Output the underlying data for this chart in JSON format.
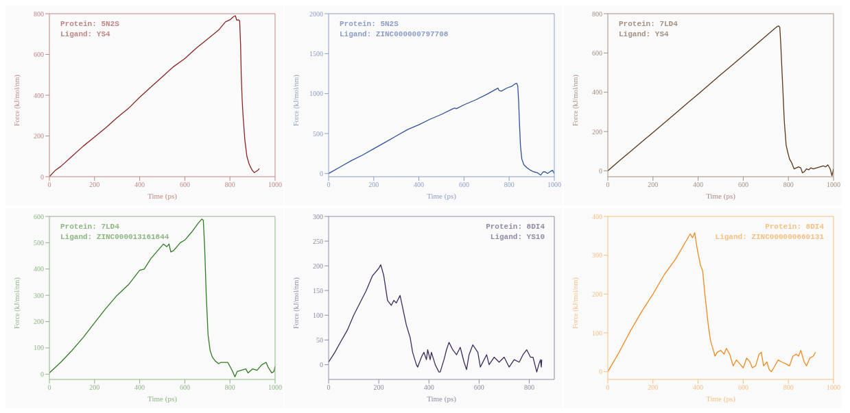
{
  "chart_data": [
    {
      "type": "line",
      "xlabel": "Time (ps)",
      "ylabel": "Force (kJ/mol/nm)",
      "annotations": [
        "Protein: 5N2S",
        "Ligand: YS4"
      ],
      "xlim": [
        0,
        1000
      ],
      "xticks": [
        0,
        200,
        400,
        600,
        800,
        1000
      ],
      "ylim": [
        0,
        800
      ],
      "yticks": [
        0,
        200,
        400,
        600,
        800
      ],
      "grid": false,
      "marker": "none",
      "series": [
        {
          "color": "#8b2323",
          "x": [
            0,
            25,
            50,
            100,
            150,
            200,
            250,
            300,
            350,
            400,
            450,
            500,
            550,
            600,
            650,
            700,
            750,
            780,
            800,
            815,
            824,
            830,
            838,
            843,
            847,
            850,
            854,
            858,
            866,
            875,
            884,
            892,
            900,
            908,
            915,
            922,
            930
          ],
          "values": [
            0,
            30,
            50,
            100,
            150,
            195,
            240,
            290,
            335,
            390,
            440,
            490,
            540,
            580,
            630,
            675,
            720,
            760,
            770,
            785,
            790,
            768,
            770,
            765,
            650,
            500,
            380,
            300,
            180,
            100,
            65,
            45,
            30,
            20,
            25,
            30,
            40
          ]
        }
      ]
    },
    {
      "type": "line",
      "xlabel": "Time (ps)",
      "ylabel": "Force (kJ/mol/nm)",
      "annotations": [
        "Protein: 5N2S",
        "Ligand: ZINC000000797708"
      ],
      "xlim": [
        0,
        1000
      ],
      "xticks": [
        0,
        200,
        400,
        600,
        800,
        1000
      ],
      "ylim": [
        -40,
        2000
      ],
      "yticks": [
        0,
        500,
        1000,
        1500,
        2000
      ],
      "grid": false,
      "marker": "none",
      "series": [
        {
          "color": "#2d4f9a",
          "x": [
            0,
            50,
            100,
            150,
            200,
            250,
            300,
            350,
            400,
            450,
            500,
            550,
            560,
            565,
            600,
            650,
            700,
            745,
            750,
            755,
            765,
            790,
            810,
            825,
            833,
            838,
            842,
            846,
            850,
            856,
            865,
            880,
            895,
            910,
            925,
            940,
            950,
            960,
            970,
            985,
            992,
            1000
          ],
          "values": [
            0,
            80,
            160,
            230,
            310,
            390,
            470,
            550,
            610,
            680,
            740,
            810,
            820,
            810,
            860,
            920,
            990,
            1060,
            1070,
            1040,
            1030,
            1070,
            1090,
            1120,
            1130,
            1100,
            900,
            600,
            350,
            180,
            110,
            70,
            40,
            20,
            10,
            -20,
            20,
            20,
            0,
            30,
            40,
            0
          ]
        }
      ]
    },
    {
      "type": "line",
      "xlabel": "Time (ps)",
      "ylabel": "Force (kJ/mol/nm)",
      "annotations": [
        "Protein: 7LD4",
        "Ligand: YS4"
      ],
      "xlim": [
        0,
        1000
      ],
      "xticks": [
        0,
        200,
        400,
        600,
        800,
        1000
      ],
      "ylim": [
        -30,
        800
      ],
      "yticks": [
        0,
        200,
        400,
        600,
        800
      ],
      "grid": false,
      "marker": "none",
      "series": [
        {
          "color": "#5a3518",
          "x": [
            0,
            50,
            100,
            150,
            200,
            250,
            300,
            350,
            400,
            450,
            500,
            550,
            600,
            650,
            700,
            740,
            750,
            757,
            762,
            766,
            770,
            776,
            782,
            790,
            796,
            805,
            815,
            825,
            835,
            845,
            855,
            862,
            870,
            880,
            890,
            900,
            910,
            925,
            940,
            955,
            965,
            975,
            985,
            993,
            1000
          ],
          "values": [
            0,
            50,
            98,
            147,
            195,
            244,
            293,
            342,
            390,
            440,
            490,
            538,
            586,
            636,
            686,
            725,
            735,
            738,
            730,
            650,
            550,
            400,
            250,
            130,
            100,
            60,
            40,
            10,
            15,
            20,
            15,
            -10,
            -5,
            10,
            5,
            15,
            10,
            15,
            20,
            25,
            20,
            30,
            10,
            -25,
            10
          ]
        }
      ]
    },
    {
      "type": "line",
      "xlabel": "Time (ps)",
      "ylabel": "Force (kJ/mol/nm)",
      "annotations": [
        "Protein: 7LD4",
        "Ligand: ZINC000013161844"
      ],
      "xlim": [
        0,
        1000
      ],
      "xticks": [
        0,
        200,
        400,
        600,
        800,
        1000
      ],
      "ylim": [
        -20,
        600
      ],
      "yticks": [
        0,
        100,
        200,
        300,
        400,
        500,
        600
      ],
      "grid": false,
      "marker": "none",
      "series": [
        {
          "color": "#2f7a22",
          "x": [
            0,
            50,
            100,
            150,
            200,
            250,
            300,
            350,
            400,
            420,
            450,
            480,
            505,
            520,
            530,
            538,
            550,
            580,
            600,
            630,
            660,
            675,
            682,
            688,
            695,
            703,
            712,
            722,
            735,
            750,
            760,
            775,
            790,
            800,
            812,
            822,
            832,
            850,
            870,
            880,
            900,
            920,
            940,
            960,
            970,
            985,
            995,
            1000
          ],
          "values": [
            5,
            45,
            90,
            140,
            195,
            250,
            300,
            340,
            395,
            400,
            440,
            470,
            495,
            485,
            495,
            465,
            470,
            500,
            510,
            540,
            575,
            590,
            585,
            480,
            300,
            150,
            90,
            65,
            50,
            40,
            45,
            45,
            45,
            30,
            10,
            -10,
            10,
            15,
            20,
            5,
            20,
            15,
            35,
            45,
            25,
            5,
            10,
            30
          ]
        }
      ]
    },
    {
      "type": "line",
      "xlabel": "Time (ps)",
      "ylabel": "Force (kJ/mol/nm)",
      "annotations": [
        "Protein: 8DI4",
        "Ligand: YS10"
      ],
      "xlim": [
        0,
        900
      ],
      "xticks": [
        0,
        200,
        400,
        600,
        800
      ],
      "ylim": [
        -30,
        300
      ],
      "yticks": [
        0,
        50,
        100,
        150,
        200,
        250,
        300
      ],
      "grid": false,
      "marker": "none",
      "series": [
        {
          "color": "#3b2a5c",
          "x": [
            0,
            25,
            50,
            75,
            100,
            125,
            150,
            175,
            200,
            208,
            220,
            235,
            250,
            260,
            270,
            285,
            310,
            325,
            335,
            350,
            355,
            370,
            380,
            390,
            395,
            405,
            410,
            425,
            440,
            445,
            460,
            470,
            480,
            495,
            510,
            525,
            540,
            550,
            560,
            575,
            595,
            605,
            620,
            630,
            640,
            660,
            680,
            700,
            720,
            740,
            760,
            775,
            790,
            805,
            815,
            830,
            838,
            845,
            848,
            850
          ],
          "values": [
            5,
            25,
            48,
            70,
            100,
            125,
            150,
            180,
            195,
            202,
            180,
            130,
            120,
            130,
            125,
            140,
            80,
            55,
            25,
            0,
            -5,
            15,
            25,
            10,
            30,
            10,
            25,
            0,
            -15,
            -15,
            10,
            30,
            45,
            30,
            20,
            35,
            5,
            -10,
            20,
            40,
            25,
            -5,
            10,
            20,
            0,
            15,
            5,
            15,
            -5,
            10,
            5,
            20,
            30,
            15,
            15,
            -15,
            0,
            10,
            -5,
            10
          ]
        }
      ]
    },
    {
      "type": "line",
      "xlabel": "Time (ps)",
      "ylabel": "Force (kJ/mol/nm)",
      "annotations": [
        "Protein: 8DI4",
        "Ligand: ZINC000000660131"
      ],
      "xlim": [
        0,
        1000
      ],
      "xticks": [
        0,
        200,
        400,
        600,
        800,
        1000
      ],
      "ylim": [
        -20,
        400
      ],
      "yticks": [
        0,
        100,
        200,
        300,
        400
      ],
      "grid": false,
      "marker": "none",
      "series": [
        {
          "color": "#ee8a1e",
          "x": [
            0,
            50,
            100,
            150,
            200,
            250,
            300,
            330,
            350,
            365,
            375,
            385,
            395,
            410,
            420,
            430,
            445,
            455,
            465,
            475,
            485,
            500,
            515,
            525,
            540,
            555,
            570,
            585,
            600,
            615,
            630,
            640,
            655,
            670,
            680,
            690,
            705,
            715,
            725,
            735,
            755,
            770,
            790,
            805,
            820,
            835,
            845,
            855,
            870,
            880,
            895,
            910,
            920
          ],
          "values": [
            0,
            50,
            105,
            155,
            200,
            250,
            290,
            320,
            340,
            355,
            345,
            358,
            320,
            275,
            260,
            200,
            120,
            80,
            60,
            40,
            50,
            55,
            45,
            60,
            45,
            15,
            30,
            20,
            10,
            35,
            25,
            10,
            15,
            45,
            50,
            15,
            25,
            5,
            0,
            10,
            30,
            25,
            20,
            15,
            40,
            45,
            40,
            55,
            25,
            15,
            35,
            40,
            50
          ]
        }
      ]
    }
  ]
}
